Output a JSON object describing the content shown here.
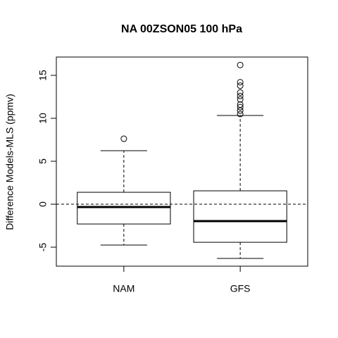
{
  "chart_data": {
    "type": "box",
    "title": "NA 00ZSON05 100 hPa",
    "y_label": "Difference Models-MLS (ppmv)",
    "categories": [
      "NAM",
      "GFS"
    ],
    "boxes": [
      {
        "whislo": -4.75,
        "q1": -2.3,
        "med": -0.33,
        "q3": 1.39,
        "whishi": 6.23,
        "outliers": [
          7.62
        ]
      },
      {
        "whislo": -6.31,
        "q1": -4.43,
        "med": -1.97,
        "q3": 1.56,
        "whishi": 10.33,
        "outliers": [
          16.2,
          14.2,
          13.8,
          13.0,
          12.6,
          12.2,
          11.6,
          11.3,
          10.9,
          10.5
        ]
      }
    ],
    "ylim": [
      -7.21,
      17.13
    ],
    "yticks": [
      -5,
      0,
      5,
      10,
      15
    ],
    "hline": 0,
    "color": "#000000"
  }
}
